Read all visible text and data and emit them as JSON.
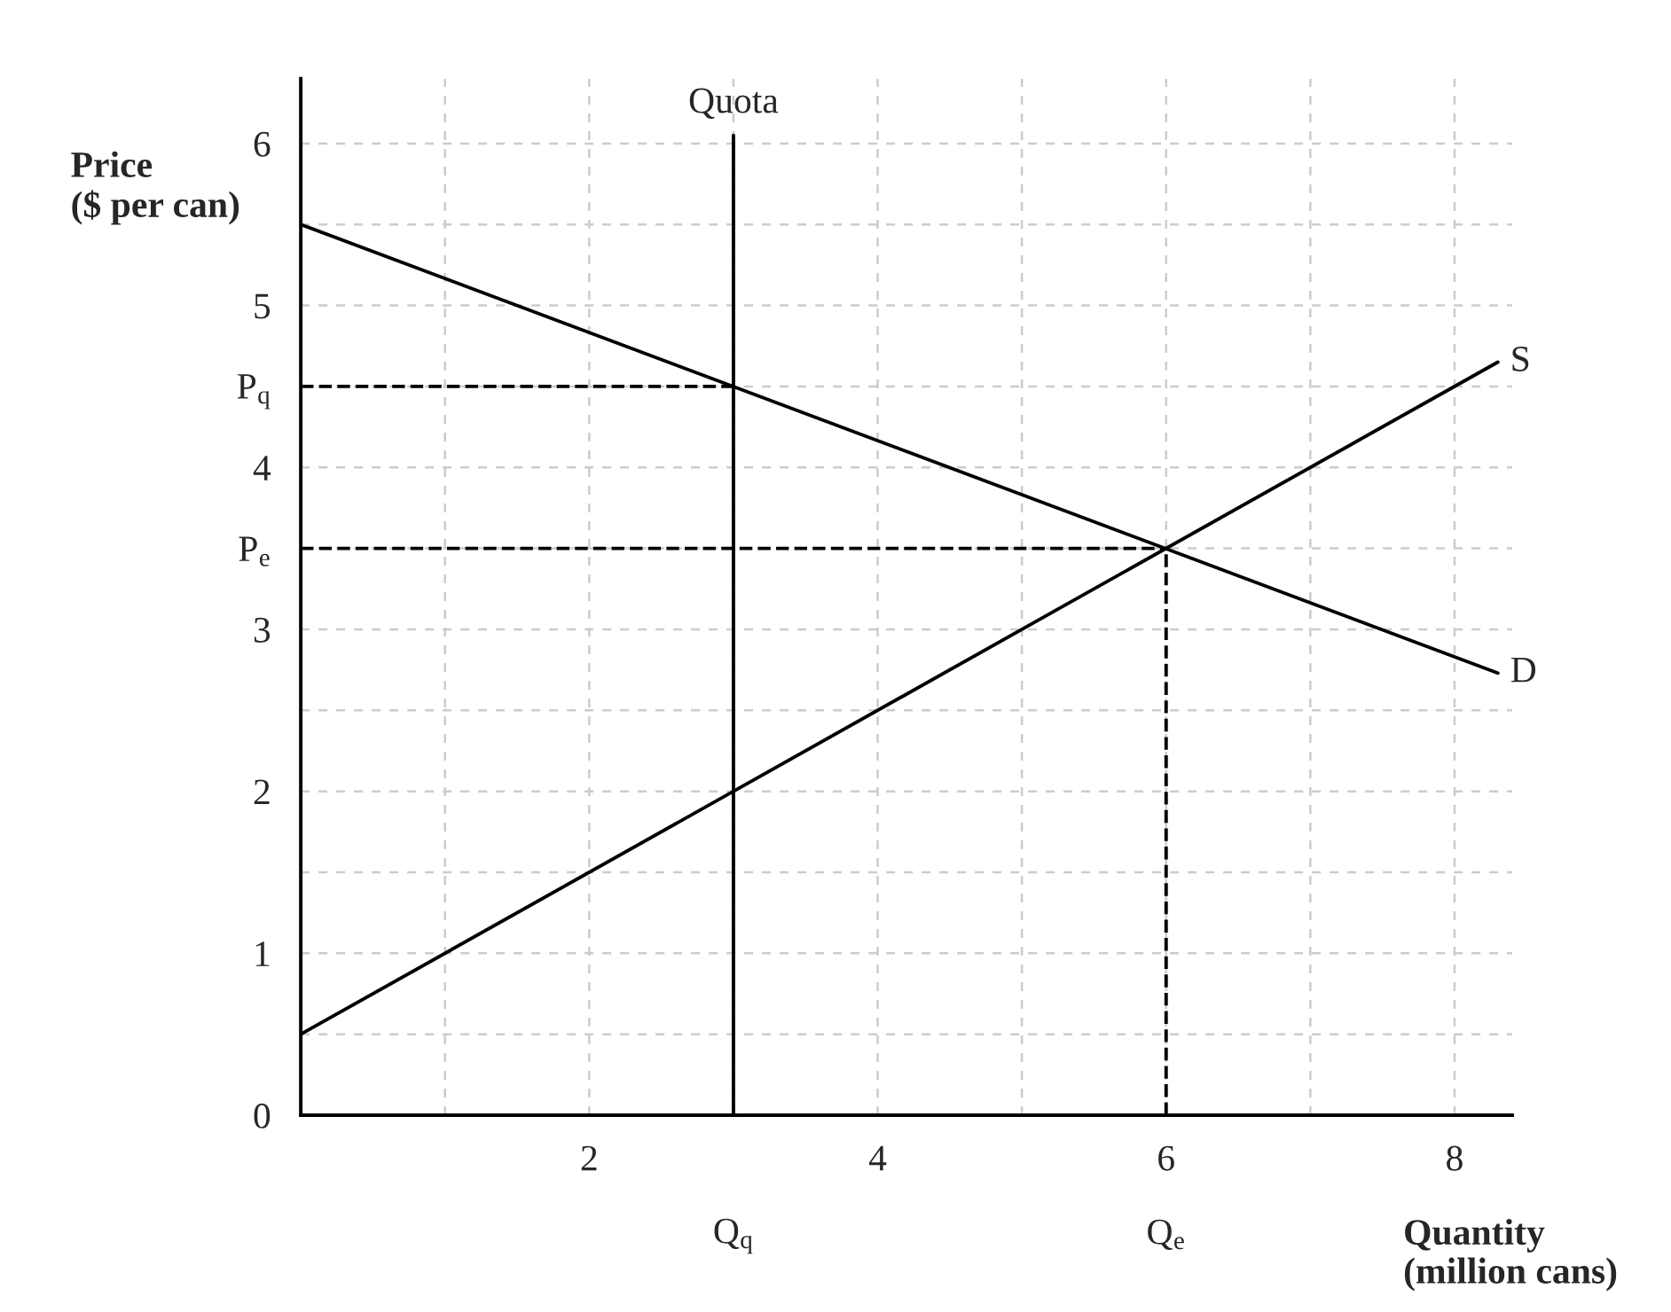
{
  "chart_data": {
    "type": "line",
    "xlabel": "Quantity\n(million cans)",
    "ylabel": "Price\n($ per can)",
    "xlim": [
      0,
      8.4
    ],
    "ylim": [
      0,
      6.4
    ],
    "xticks": [
      {
        "value": 1,
        "label": null
      },
      2,
      {
        "value": 3,
        "label": null
      },
      4,
      {
        "value": 5,
        "label": null
      },
      6,
      {
        "value": 7,
        "label": null
      },
      8
    ],
    "yticks": [
      0,
      {
        "value": 0.5,
        "label": null
      },
      1,
      {
        "value": 1.5,
        "label": null
      },
      2,
      {
        "value": 2.5,
        "label": null
      },
      3,
      {
        "value": 3.5,
        "label": "P$_{e}$"
      },
      4,
      {
        "value": 4.5,
        "label": "P$_{q}$"
      },
      5,
      {
        "value": 5.5,
        "label": null
      },
      6
    ],
    "grid": true,
    "line_style": "solid",
    "marker": "none",
    "legend": false,
    "series": [
      {
        "name": "D",
        "color": "#000000",
        "x": [
          0,
          8.3
        ],
        "values": [
          5.5,
          2.73
        ]
      },
      {
        "name": "S",
        "color": "#000000",
        "x": [
          0,
          8.3
        ],
        "values": [
          0.5,
          4.65
        ]
      },
      {
        "name": "Quota",
        "color": "#000000",
        "x": [
          3,
          3
        ],
        "values": [
          0,
          6.05
        ]
      },
      {
        "color": "#000000",
        "line_style": "dashed",
        "x": [
          0,
          3
        ],
        "values": [
          4.5,
          4.5
        ]
      },
      {
        "color": "#000000",
        "line_style": "dashed",
        "x": [
          0,
          6
        ],
        "values": [
          3.5,
          3.5
        ]
      },
      {
        "color": "#000000",
        "line_style": "dashed",
        "x": [
          6,
          6
        ],
        "values": [
          0,
          3.5
        ]
      }
    ],
    "annotations": [
      {
        "text": "Q$_{q}$",
        "x": 3,
        "y": 0
      },
      {
        "text": "Q$_{e}$",
        "x": 6,
        "y": 0
      }
    ]
  }
}
